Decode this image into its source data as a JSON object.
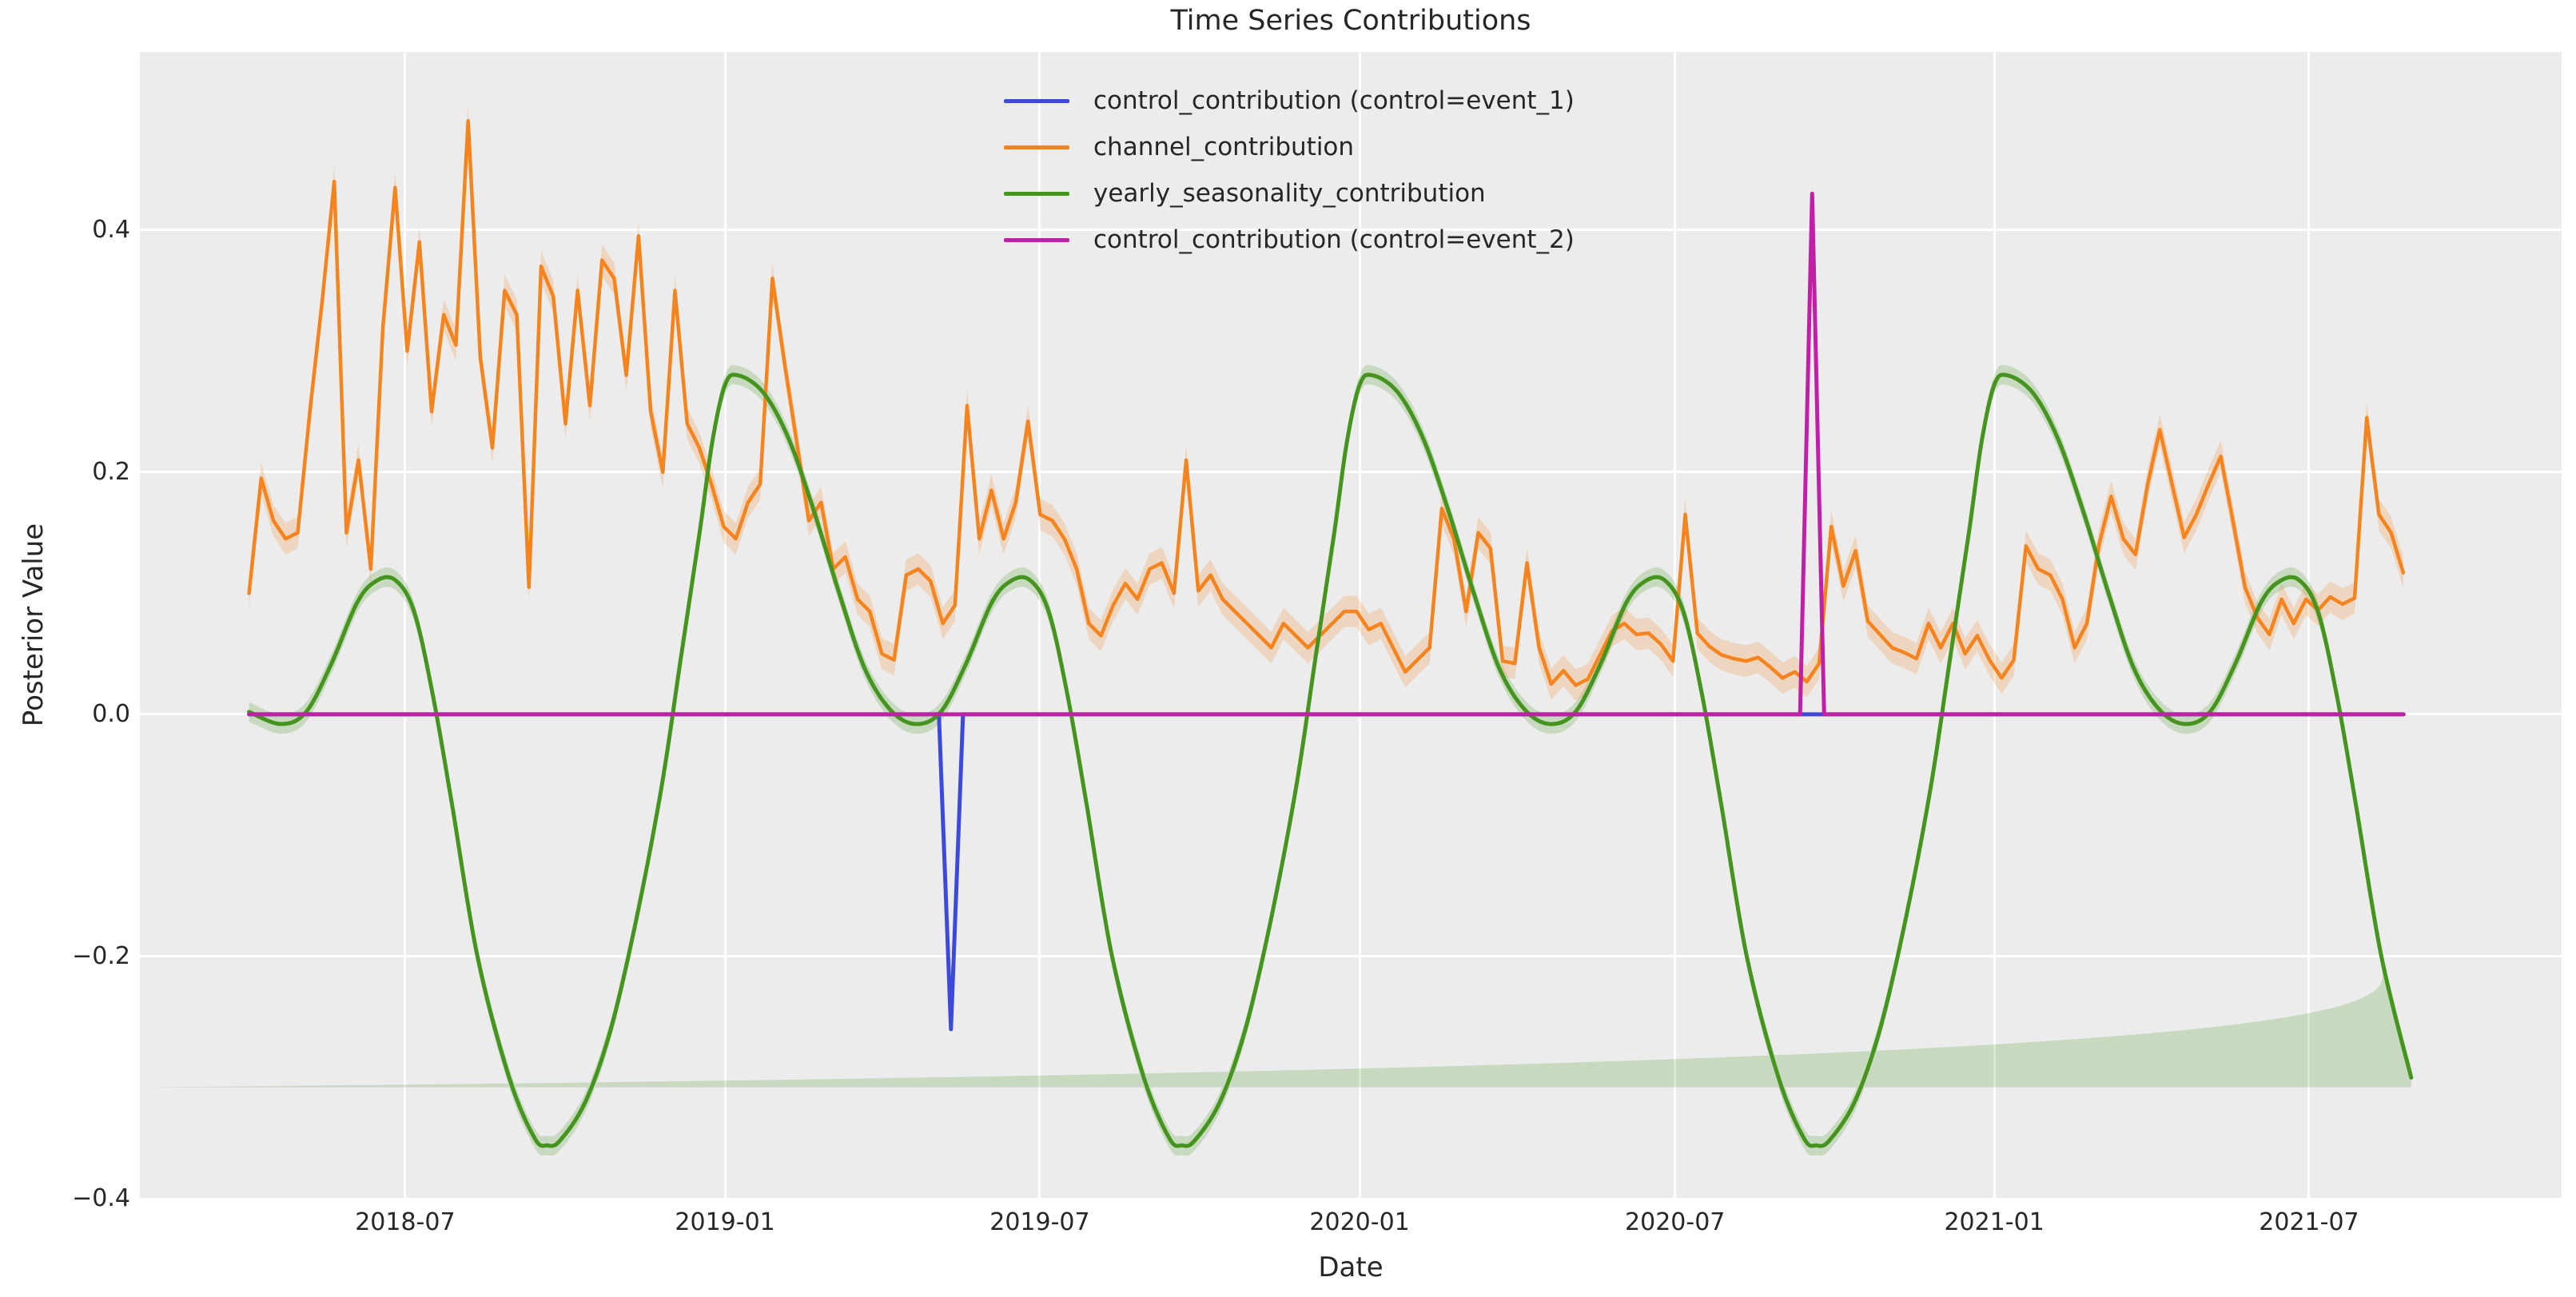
{
  "title": "Time Series Contributions",
  "xlabel": "Date",
  "ylabel": "Posterior Value",
  "colors": {
    "figure_background": "#ffffff",
    "axes_background": "#ececec",
    "grid": "#ffffff",
    "text": "#262626",
    "blue": "#3d49db",
    "orange": "#f5841e",
    "orange_band": "rgba(245,132,30,0.22)",
    "green": "#44941e",
    "green_band": "rgba(68,148,30,0.22)",
    "magenta": "#c01fa6"
  },
  "legend": {
    "items": [
      {
        "label": "control_contribution (control=event_1)",
        "color_key": "blue"
      },
      {
        "label": "channel_contribution",
        "color_key": "orange"
      },
      {
        "label": "yearly_seasonality_contribution",
        "color_key": "green"
      },
      {
        "label": "control_contribution (control=event_2)",
        "color_key": "magenta"
      }
    ]
  },
  "axes": {
    "xlim": [
      2018.078,
      2021.894
    ],
    "ylim": [
      -0.4,
      0.547
    ],
    "xticks": [
      {
        "t": 2018.496,
        "label": "2018-07"
      },
      {
        "t": 2019.0,
        "label": "2019-01"
      },
      {
        "t": 2019.496,
        "label": "2019-07"
      },
      {
        "t": 2020.0,
        "label": "2020-01"
      },
      {
        "t": 2020.497,
        "label": "2020-07"
      },
      {
        "t": 2021.0,
        "label": "2021-01"
      },
      {
        "t": 2021.496,
        "label": "2021-07"
      }
    ],
    "yticks": [
      {
        "v": 0.4,
        "label": "0.4"
      },
      {
        "v": 0.2,
        "label": "0.2"
      },
      {
        "v": 0.0,
        "label": "0.0"
      },
      {
        "v": -0.2,
        "label": "−0.2"
      },
      {
        "v": -0.4,
        "label": "−0.4"
      }
    ],
    "grid": true,
    "legend_position": "upper center"
  },
  "chart_data": {
    "type": "line",
    "title": "Time Series Contributions",
    "xlabel": "Date",
    "ylabel": "Posterior Value",
    "x_unit": "decimal_year",
    "series": [
      {
        "name": "control_contribution (control=event_1)",
        "color_key": "blue",
        "style": "linear",
        "points": [
          [
            2018.25,
            0
          ],
          [
            2019.337,
            0
          ],
          [
            2019.356,
            -0.26
          ],
          [
            2019.375,
            0
          ],
          [
            2021.645,
            0
          ]
        ]
      },
      {
        "name": "channel_contribution",
        "color_key": "orange",
        "style": "linear",
        "band_halfwidth": 0.013,
        "t0": 2018.25,
        "dt": 0.019178,
        "values": [
          0.1,
          0.195,
          0.16,
          0.145,
          0.15,
          0.25,
          0.34,
          0.44,
          0.15,
          0.21,
          0.12,
          0.32,
          0.435,
          0.3,
          0.39,
          0.25,
          0.33,
          0.305,
          0.49,
          0.295,
          0.22,
          0.35,
          0.33,
          0.105,
          0.37,
          0.345,
          0.24,
          0.35,
          0.255,
          0.375,
          0.36,
          0.28,
          0.395,
          0.25,
          0.2,
          0.35,
          0.24,
          0.22,
          0.19,
          0.155,
          0.145,
          0.175,
          0.19,
          0.36,
          0.29,
          0.225,
          0.16,
          0.175,
          0.12,
          0.13,
          0.095,
          0.085,
          0.05,
          0.045,
          0.115,
          0.12,
          0.11,
          0.075,
          0.09,
          0.255,
          0.145,
          0.185,
          0.145,
          0.175,
          0.242,
          0.165,
          0.16,
          0.145,
          0.12,
          0.075,
          0.065,
          0.09,
          0.108,
          0.095,
          0.12,
          0.125,
          0.1,
          0.21,
          0.102,
          0.115,
          0.095,
          0.085,
          0.075,
          0.065,
          0.055,
          0.075,
          0.065,
          0.055,
          0.065,
          0.075,
          0.085,
          0.085,
          0.07,
          0.075,
          0.055,
          0.035,
          0.045,
          0.055,
          0.17,
          0.145,
          0.085,
          0.15,
          0.137,
          0.044,
          0.042,
          0.125,
          0.055,
          0.025,
          0.036,
          0.024,
          0.029,
          0.049,
          0.069,
          0.075,
          0.066,
          0.067,
          0.058,
          0.044,
          0.165,
          0.067,
          0.056,
          0.049,
          0.046,
          0.044,
          0.047,
          0.039,
          0.03,
          0.035,
          0.027,
          0.042,
          0.155,
          0.106,
          0.135,
          0.077,
          0.066,
          0.055,
          0.051,
          0.046,
          0.075,
          0.055,
          0.075,
          0.05,
          0.065,
          0.045,
          0.03,
          0.045,
          0.139,
          0.12,
          0.115,
          0.095,
          0.055,
          0.075,
          0.14,
          0.18,
          0.145,
          0.132,
          0.19,
          0.235,
          0.19,
          0.146,
          0.165,
          0.19,
          0.213,
          0.16,
          0.105,
          0.08,
          0.066,
          0.095,
          0.075,
          0.095,
          0.086,
          0.097,
          0.091,
          0.096,
          0.245,
          0.165,
          0.15,
          0.117
        ]
      },
      {
        "name": "yearly_seasonality_contribution",
        "color_key": "green",
        "style": "smooth",
        "band_halfwidth": 0.008,
        "points": [
          [
            2018.25,
            0.002
          ],
          [
            2018.3,
            -0.008
          ],
          [
            2018.34,
            0.002
          ],
          [
            2018.38,
            0.042
          ],
          [
            2018.42,
            0.092
          ],
          [
            2018.45,
            0.11
          ],
          [
            2018.48,
            0.111
          ],
          [
            2018.51,
            0.085
          ],
          [
            2018.54,
            0.015
          ],
          [
            2018.57,
            -0.075
          ],
          [
            2018.61,
            -0.2
          ],
          [
            2018.66,
            -0.3
          ],
          [
            2018.7,
            -0.35
          ],
          [
            2018.72,
            -0.356
          ],
          [
            2018.74,
            -0.352
          ],
          [
            2018.78,
            -0.32
          ],
          [
            2018.82,
            -0.26
          ],
          [
            2018.86,
            -0.17
          ],
          [
            2018.9,
            -0.06
          ],
          [
            2018.93,
            0.045
          ],
          [
            2018.96,
            0.15
          ],
          [
            2018.98,
            0.225
          ],
          [
            2019.0,
            0.272
          ],
          [
            2019.02,
            0.28
          ],
          [
            2019.06,
            0.266
          ],
          [
            2019.1,
            0.228
          ],
          [
            2019.14,
            0.168
          ],
          [
            2019.18,
            0.1
          ],
          [
            2019.22,
            0.038
          ],
          [
            2019.26,
            0.004
          ],
          [
            2019.3,
            -0.008
          ],
          [
            2019.34,
            0.002
          ],
          [
            2019.38,
            0.042
          ],
          [
            2019.42,
            0.092
          ],
          [
            2019.45,
            0.11
          ],
          [
            2019.48,
            0.111
          ],
          [
            2019.51,
            0.085
          ],
          [
            2019.54,
            0.015
          ],
          [
            2019.57,
            -0.075
          ],
          [
            2019.61,
            -0.2
          ],
          [
            2019.66,
            -0.3
          ],
          [
            2019.7,
            -0.35
          ],
          [
            2019.72,
            -0.356
          ],
          [
            2019.74,
            -0.352
          ],
          [
            2019.78,
            -0.32
          ],
          [
            2019.82,
            -0.26
          ],
          [
            2019.86,
            -0.17
          ],
          [
            2019.9,
            -0.06
          ],
          [
            2019.93,
            0.045
          ],
          [
            2019.96,
            0.15
          ],
          [
            2019.98,
            0.225
          ],
          [
            2020.0,
            0.272
          ],
          [
            2020.02,
            0.28
          ],
          [
            2020.06,
            0.266
          ],
          [
            2020.1,
            0.228
          ],
          [
            2020.14,
            0.168
          ],
          [
            2020.18,
            0.1
          ],
          [
            2020.22,
            0.038
          ],
          [
            2020.26,
            0.004
          ],
          [
            2020.3,
            -0.008
          ],
          [
            2020.34,
            0.002
          ],
          [
            2020.38,
            0.042
          ],
          [
            2020.42,
            0.092
          ],
          [
            2020.45,
            0.11
          ],
          [
            2020.48,
            0.111
          ],
          [
            2020.51,
            0.085
          ],
          [
            2020.54,
            0.015
          ],
          [
            2020.57,
            -0.075
          ],
          [
            2020.61,
            -0.2
          ],
          [
            2020.66,
            -0.3
          ],
          [
            2020.7,
            -0.35
          ],
          [
            2020.72,
            -0.356
          ],
          [
            2020.74,
            -0.352
          ],
          [
            2020.78,
            -0.32
          ],
          [
            2020.82,
            -0.26
          ],
          [
            2020.86,
            -0.17
          ],
          [
            2020.9,
            -0.06
          ],
          [
            2020.93,
            0.045
          ],
          [
            2020.96,
            0.15
          ],
          [
            2020.98,
            0.225
          ],
          [
            2021.0,
            0.272
          ],
          [
            2021.02,
            0.28
          ],
          [
            2021.06,
            0.266
          ],
          [
            2021.1,
            0.228
          ],
          [
            2021.14,
            0.168
          ],
          [
            2021.18,
            0.1
          ],
          [
            2021.22,
            0.038
          ],
          [
            2021.26,
            0.004
          ],
          [
            2021.3,
            -0.008
          ],
          [
            2021.34,
            0.002
          ],
          [
            2021.38,
            0.042
          ],
          [
            2021.42,
            0.092
          ],
          [
            2021.45,
            0.11
          ],
          [
            2021.48,
            0.111
          ],
          [
            2021.51,
            0.085
          ],
          [
            2021.54,
            0.015
          ],
          [
            2021.57,
            -0.075
          ],
          [
            2021.61,
            -0.2
          ],
          [
            2021.657,
            -0.3
          ]
        ]
      },
      {
        "name": "control_contribution (control=event_2)",
        "color_key": "magenta",
        "style": "linear",
        "points": [
          [
            2018.25,
            0
          ],
          [
            2020.694,
            0
          ],
          [
            2020.713,
            0.43
          ],
          [
            2020.732,
            0
          ],
          [
            2021.645,
            0
          ]
        ]
      }
    ]
  }
}
